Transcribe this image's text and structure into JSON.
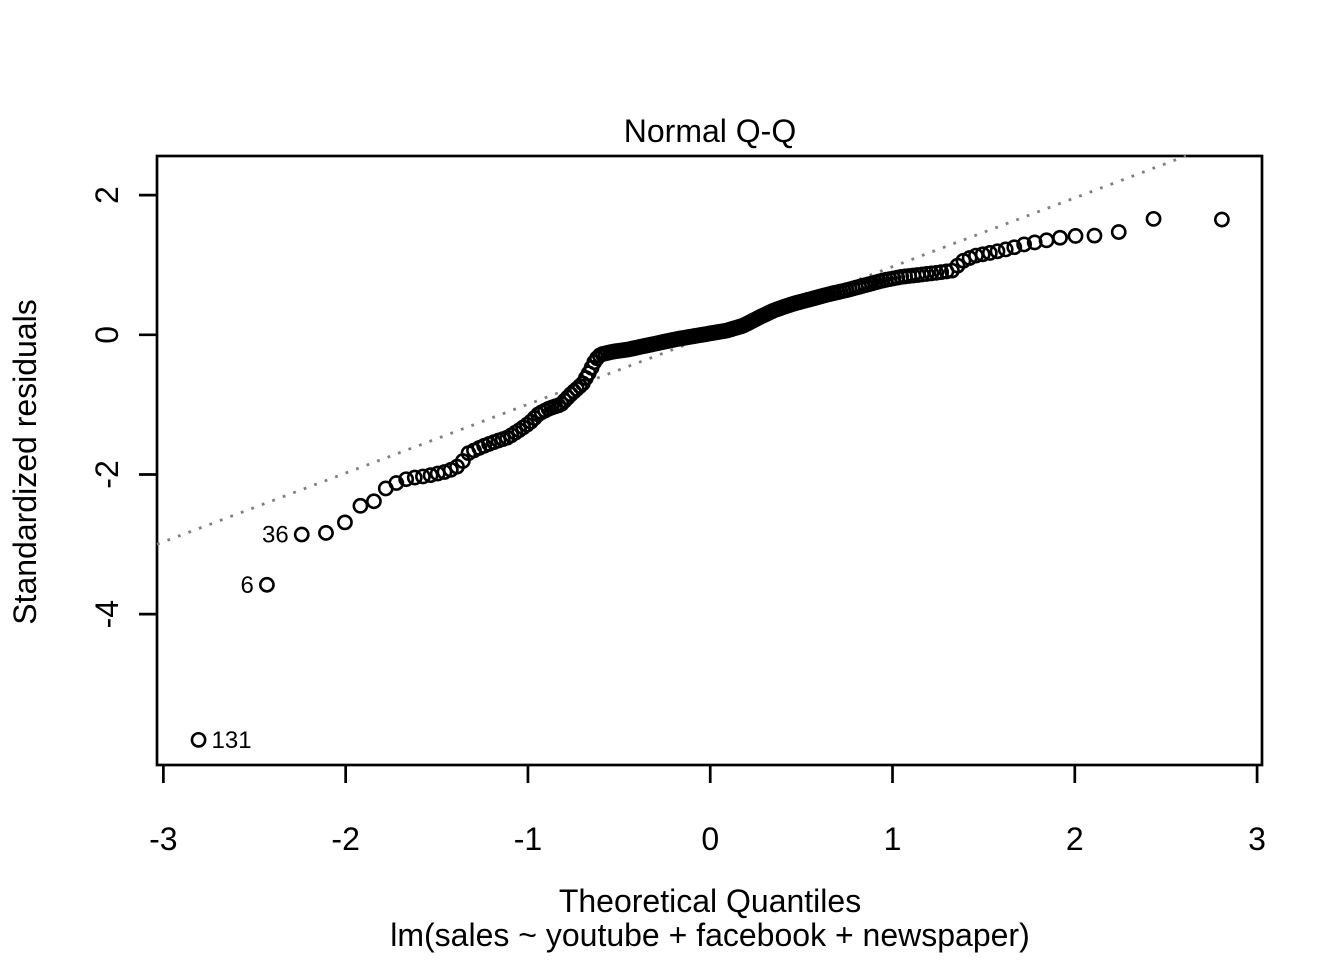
{
  "chart_data": {
    "type": "scatter",
    "title": "Normal Q-Q",
    "xlabel": "Theoretical Quantiles",
    "ylabel": "Standardized residuals",
    "sub_caption": "lm(sales ~ youtube + facebook + newspaper)",
    "xlim": [
      -3.035,
      3.027
    ],
    "ylim": [
      -6.16,
      2.56
    ],
    "x_ticks": [
      -3,
      -2,
      -1,
      0,
      1,
      2,
      3
    ],
    "y_ticks": [
      -4,
      -2,
      0,
      2
    ],
    "grid": false,
    "legend": "none",
    "point_style": {
      "shape": "open-circle",
      "radius_px": 6.6,
      "stroke_px": 2.6,
      "color": "#000000"
    },
    "reference_line": {
      "style": "dotted",
      "color": "#7f7f7f",
      "slope": 0.985,
      "intercept": -0.01
    },
    "labeled_points": [
      {
        "label": "131",
        "x": -2.807,
        "y": -5.8,
        "label_side": "right"
      },
      {
        "label": "6",
        "x": -2.432,
        "y": -3.58,
        "label_side": "left"
      },
      {
        "label": "36",
        "x": -2.241,
        "y": -2.86,
        "label_side": "left"
      }
    ],
    "n_points": 200,
    "theoretical_quantiles": [
      -2.807,
      -2.432,
      -2.241,
      -2.108,
      -2.004,
      -1.919,
      -1.845,
      -1.78,
      -1.722,
      -1.668,
      -1.621,
      -1.576,
      -1.534,
      -1.495,
      -1.458,
      -1.423,
      -1.389,
      -1.357,
      -1.326,
      -1.296,
      -1.267,
      -1.24,
      -1.213,
      -1.187,
      -1.162,
      -1.138,
      -1.114,
      -1.091,
      -1.069,
      -1.048,
      -1.026,
      -1.005,
      -0.984,
      -0.964,
      -0.944,
      -0.925,
      -0.906,
      -0.887,
      -0.869,
      -0.851,
      -0.833,
      -0.816,
      -0.799,
      -0.782,
      -0.765,
      -0.748,
      -0.732,
      -0.715,
      -0.699,
      -0.682,
      -0.667,
      -0.651,
      -0.636,
      -0.621,
      -0.606,
      -0.591,
      -0.576,
      -0.561,
      -0.546,
      -0.532,
      -0.517,
      -0.503,
      -0.489,
      -0.475,
      -0.461,
      -0.447,
      -0.433,
      -0.42,
      -0.406,
      -0.392,
      -0.379,
      -0.365,
      -0.352,
      -0.339,
      -0.326,
      -0.312,
      -0.299,
      -0.286,
      -0.273,
      -0.26,
      -0.247,
      -0.234,
      -0.221,
      -0.208,
      -0.196,
      -0.183,
      -0.17,
      -0.158,
      -0.145,
      -0.132,
      -0.119,
      -0.107,
      -0.094,
      -0.082,
      -0.069,
      -0.056,
      -0.044,
      -0.031,
      -0.019,
      -0.006,
      0.006,
      0.019,
      0.031,
      0.044,
      0.056,
      0.069,
      0.082,
      0.094,
      0.107,
      0.119,
      0.132,
      0.145,
      0.158,
      0.17,
      0.183,
      0.196,
      0.208,
      0.221,
      0.234,
      0.247,
      0.26,
      0.273,
      0.286,
      0.299,
      0.312,
      0.326,
      0.339,
      0.352,
      0.365,
      0.379,
      0.392,
      0.406,
      0.42,
      0.433,
      0.447,
      0.461,
      0.475,
      0.489,
      0.503,
      0.517,
      0.532,
      0.546,
      0.561,
      0.576,
      0.591,
      0.606,
      0.621,
      0.636,
      0.651,
      0.667,
      0.682,
      0.699,
      0.715,
      0.732,
      0.748,
      0.765,
      0.782,
      0.799,
      0.816,
      0.833,
      0.851,
      0.869,
      0.887,
      0.906,
      0.925,
      0.944,
      0.964,
      0.984,
      1.005,
      1.026,
      1.048,
      1.069,
      1.091,
      1.114,
      1.138,
      1.162,
      1.187,
      1.213,
      1.24,
      1.267,
      1.296,
      1.326,
      1.357,
      1.389,
      1.423,
      1.458,
      1.495,
      1.534,
      1.576,
      1.621,
      1.668,
      1.722,
      1.78,
      1.845,
      1.919,
      2.004,
      2.108,
      2.241,
      2.432,
      2.807
    ],
    "empirical_curve": [
      [
        -2.81,
        -5.82
      ],
      [
        -2.43,
        -3.57
      ],
      [
        -2.24,
        -2.86
      ],
      [
        -2.11,
        -2.84
      ],
      [
        -2.0,
        -2.68
      ],
      [
        -1.92,
        -2.45
      ],
      [
        -1.84,
        -2.38
      ],
      [
        -1.78,
        -2.2
      ],
      [
        -1.72,
        -2.12
      ],
      [
        -1.66,
        -2.06
      ],
      [
        -1.61,
        -2.04
      ],
      [
        -1.55,
        -2.02
      ],
      [
        -1.5,
        -1.99
      ],
      [
        -1.45,
        -1.96
      ],
      [
        -1.41,
        -1.92
      ],
      [
        -1.37,
        -1.86
      ],
      [
        -1.33,
        -1.7
      ],
      [
        -1.26,
        -1.61
      ],
      [
        -1.18,
        -1.53
      ],
      [
        -1.11,
        -1.47
      ],
      [
        -1.05,
        -1.37
      ],
      [
        -0.99,
        -1.26
      ],
      [
        -0.94,
        -1.13
      ],
      [
        -0.88,
        -1.05
      ],
      [
        -0.82,
        -1.0
      ],
      [
        -0.76,
        -0.84
      ],
      [
        -0.7,
        -0.7
      ],
      [
        -0.66,
        -0.52
      ],
      [
        -0.63,
        -0.36
      ],
      [
        -0.6,
        -0.28
      ],
      [
        -0.53,
        -0.24
      ],
      [
        -0.45,
        -0.21
      ],
      [
        -0.36,
        -0.16
      ],
      [
        -0.27,
        -0.11
      ],
      [
        -0.18,
        -0.06
      ],
      [
        -0.09,
        -0.02
      ],
      [
        0.0,
        0.02
      ],
      [
        0.09,
        0.06
      ],
      [
        0.18,
        0.13
      ],
      [
        0.27,
        0.25
      ],
      [
        0.35,
        0.35
      ],
      [
        0.45,
        0.44
      ],
      [
        0.55,
        0.51
      ],
      [
        0.65,
        0.58
      ],
      [
        0.75,
        0.64
      ],
      [
        0.85,
        0.71
      ],
      [
        0.95,
        0.78
      ],
      [
        1.05,
        0.83
      ],
      [
        1.15,
        0.86
      ],
      [
        1.25,
        0.89
      ],
      [
        1.33,
        0.92
      ],
      [
        1.38,
        1.05
      ],
      [
        1.45,
        1.13
      ],
      [
        1.55,
        1.18
      ],
      [
        1.65,
        1.24
      ],
      [
        1.73,
        1.3
      ],
      [
        1.82,
        1.34
      ],
      [
        1.92,
        1.39
      ],
      [
        2.02,
        1.42
      ],
      [
        2.12,
        1.42
      ],
      [
        2.24,
        1.47
      ],
      [
        2.43,
        1.66
      ],
      [
        2.81,
        1.65
      ]
    ]
  }
}
